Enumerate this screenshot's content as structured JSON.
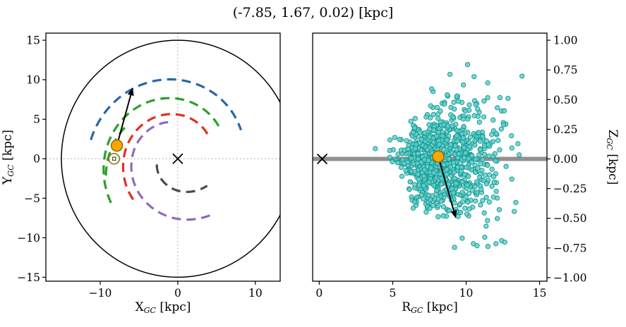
{
  "title": "(-7.85, 1.67, 0.02) [kpc]",
  "styles": {
    "object_fill": "#ffa500",
    "object_edge": "#8a6d0a",
    "frame_color": "#000000",
    "crosshair_color": "#999999",
    "midplane_color": "#909090"
  },
  "chart_data": [
    {
      "id": "galactocentric-xy",
      "type": "scatter",
      "xlabel": {
        "main": "X",
        "sub": "GC",
        "unit": " [kpc]"
      },
      "ylabel": {
        "main": "Y",
        "sub": "GC",
        "unit": " [kpc]"
      },
      "xlim": [
        -17.0,
        13.2
      ],
      "ylim": [
        -15.5,
        15.9
      ],
      "xticks": [
        -10,
        0,
        10
      ],
      "yticks": [
        15,
        10,
        5,
        0,
        -5,
        -10,
        -15
      ],
      "grid": "dotted-crosshair-at-zero",
      "disk_radius_kpc": 15,
      "galactic_center": {
        "x": 0,
        "y": 0,
        "marker": "x"
      },
      "sun": {
        "x": -8.2,
        "y": 0,
        "marker": "sun-symbol"
      },
      "object": {
        "x": -7.85,
        "y": 1.67
      },
      "velocity_arrow": {
        "x1": -7.85,
        "y1": 1.67,
        "x2": -5.8,
        "y2": 9.0
      },
      "spiral_arms": [
        {
          "name": "outer-arm-blue",
          "color": "#2468a8",
          "r0": 10.0,
          "theta0": 90,
          "b": 0.1,
          "t1": 168,
          "t2": 24
        },
        {
          "name": "arm-green-main",
          "color": "#2aa02a",
          "r0": 7.6,
          "theta0": 90,
          "b": 0.14,
          "t1": 213,
          "t2": 33
        },
        {
          "name": "arm-green-local",
          "color": "#2aa02a",
          "r0": 8.6,
          "theta0": 170,
          "b": 0.25,
          "t1": 193,
          "t2": 150
        },
        {
          "name": "arm-red",
          "color": "#e03020",
          "r0": 5.6,
          "theta0": 90,
          "b": 0.14,
          "t1": 222,
          "t2": 36
        },
        {
          "name": "arm-purple",
          "color": "#9467bd",
          "r0": 4.8,
          "theta0": 105,
          "b": 0.16,
          "t1": 105,
          "t2": 300
        },
        {
          "name": "arm-gray",
          "color": "#4a4a4a",
          "r0": 2.8,
          "theta0": 195,
          "b": 0.28,
          "t1": 195,
          "t2": 318
        }
      ]
    },
    {
      "id": "galactocentric-rz",
      "type": "scatter",
      "xlabel": {
        "main": "R",
        "sub": "GC",
        "unit": " [kpc]"
      },
      "ylabel": {
        "main": "Z",
        "sub": "GC",
        "unit": " [kpc]"
      },
      "xlim": [
        -0.45,
        15.5
      ],
      "ylim": [
        -1.03,
        1.06
      ],
      "xticks": [
        0,
        5,
        10,
        15
      ],
      "yticks": [
        1.0,
        0.75,
        0.5,
        0.25,
        0.0,
        -0.25,
        -0.5,
        -0.75,
        -1.0
      ],
      "midplane": {
        "z": 0,
        "color": "#909090"
      },
      "center_marker": {
        "r": 0.2,
        "z": 0,
        "marker": "x"
      },
      "object": {
        "r": 8.1,
        "z": 0.02
      },
      "velocity_arrow": {
        "x1": 8.1,
        "y1": 0.02,
        "x2": 9.3,
        "y2": -0.5
      },
      "scatter_cloud": {
        "n": 1000,
        "seed": 11,
        "fill": "#5fd0cb",
        "edge": "#17948e",
        "opacity": 0.85,
        "marker_radius_px": 3.2,
        "r_center": 8.15,
        "r_sigma_inner": 1.25,
        "r_sigma_outer": 1.95,
        "r_min": 3.8,
        "r_max": 15.6,
        "z_sigma_base": 0.05,
        "z_sigma_slope_per_kpc": 0.033,
        "z_sigma_ref_r": 3.5,
        "z_clip": 1.0
      }
    }
  ]
}
